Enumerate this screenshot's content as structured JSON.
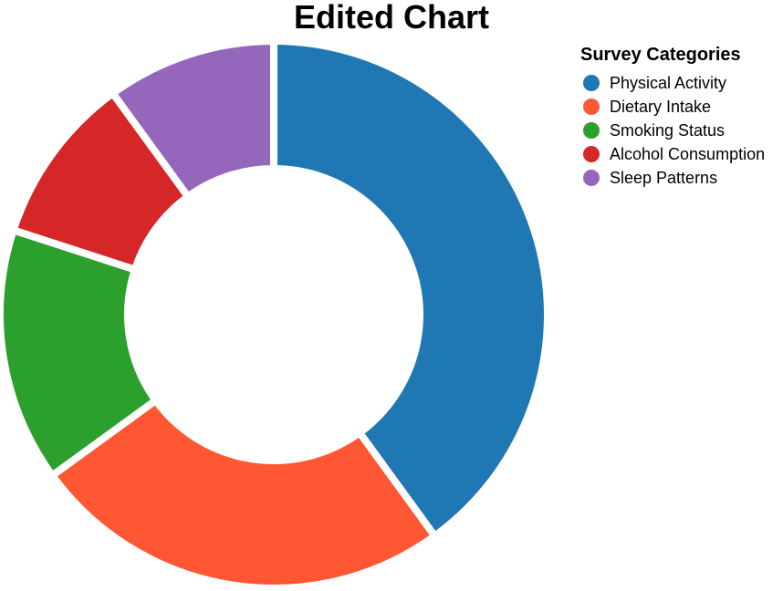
{
  "chart_data": {
    "type": "pie",
    "donut": true,
    "title": "Edited Chart",
    "legend_title": "Survey Categories",
    "legend_position": "top-right",
    "categories": [
      "Physical Activity",
      "Dietary Intake",
      "Smoking Status",
      "Alcohol Consumption",
      "Sleep Patterns"
    ],
    "values": [
      40,
      25,
      15,
      10,
      10
    ],
    "colors": [
      "#1f77b4",
      "#ff5733",
      "#2ca02c",
      "#d62728",
      "#9467bd"
    ]
  }
}
